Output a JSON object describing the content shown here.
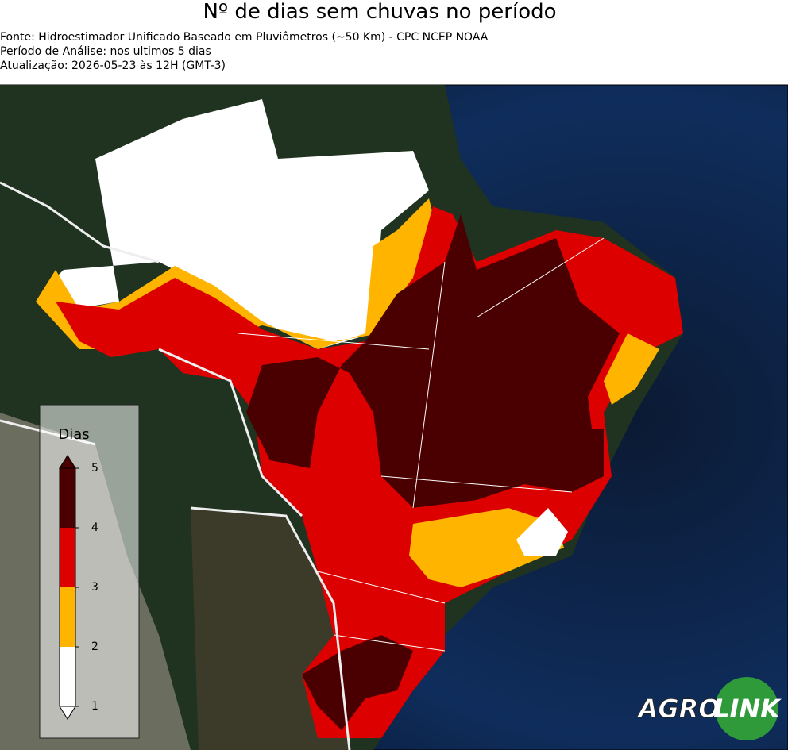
{
  "header": {
    "title": "Nº de dias sem chuvas no período",
    "lines": [
      "Fonte: Hidroestimador Unificado Baseado em Pluviômetros (~50 Km) - CPC NCEP NOAA",
      "Período de Análise: nos ultimos 5 dias",
      "Atualização: 2026-05-23 às 12H (GMT-3)"
    ]
  },
  "legend": {
    "title": "Dias",
    "ticks": [
      1,
      2,
      3,
      4,
      5
    ],
    "colors": [
      "#ffffff",
      "#ffb400",
      "#dc0000",
      "#4a0000"
    ]
  },
  "logo": {
    "parts": [
      "AGRO",
      "LINK"
    ]
  }
}
